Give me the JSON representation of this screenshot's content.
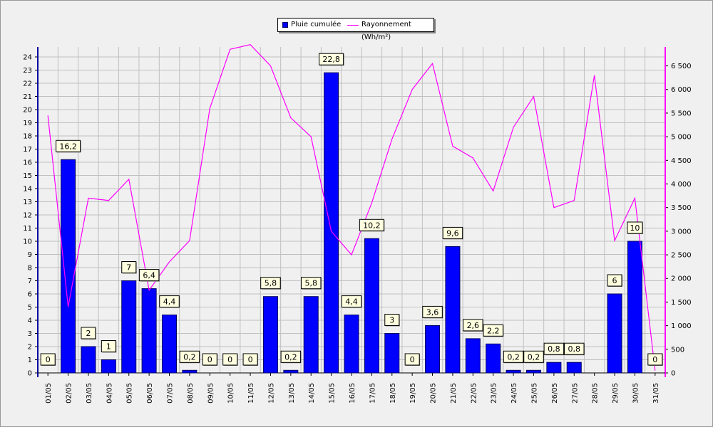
{
  "legend": {
    "bar_label": "Pluie cumulée",
    "line_label": "Rayonnement (Wh/m²)"
  },
  "colors": {
    "bar": "#0000ff",
    "line": "#ff00ff",
    "grid": "#c0c0c0",
    "label_bg": "#ffffe0"
  },
  "chart_data": {
    "type": "bar",
    "categories": [
      "01/05",
      "02/05",
      "03/05",
      "04/05",
      "05/05",
      "06/05",
      "07/05",
      "08/05",
      "09/05",
      "10/05",
      "11/05",
      "12/05",
      "13/05",
      "14/05",
      "15/05",
      "16/05",
      "17/05",
      "18/05",
      "19/05",
      "20/05",
      "21/05",
      "22/05",
      "23/05",
      "24/05",
      "25/05",
      "26/05",
      "27/05",
      "28/05",
      "29/05",
      "30/05",
      "31/05"
    ],
    "series": [
      {
        "name": "Pluie cumulée",
        "type": "bar",
        "axis": "left",
        "values": [
          0,
          16.2,
          2,
          1,
          7,
          6.4,
          4.4,
          0.2,
          0,
          0,
          0,
          5.8,
          0.2,
          5.8,
          22.8,
          4.4,
          10.2,
          3,
          0,
          3.6,
          9.6,
          2.6,
          2.2,
          0.2,
          0.2,
          0.8,
          0.8,
          null,
          6,
          10,
          0
        ],
        "data_labels": [
          "0",
          "16,2",
          "2",
          "1",
          "7",
          "6,4",
          "4,4",
          "0,2",
          "0",
          "0",
          "0",
          "5,8",
          "0,2",
          "5,8",
          "22,8",
          "4,4",
          "10,2",
          "3",
          "0",
          "3,6",
          "9,6",
          "2,6",
          "2,2",
          "0,2",
          "0,2",
          "0,8",
          "0,8",
          "",
          "6",
          "10",
          "0"
        ]
      },
      {
        "name": "Rayonnement (Wh/m²)",
        "type": "line",
        "axis": "right",
        "values": [
          5450,
          1400,
          3700,
          3650,
          4100,
          1750,
          2350,
          2800,
          5600,
          6850,
          6950,
          6500,
          5400,
          5000,
          3000,
          2500,
          3600,
          4950,
          6000,
          6550,
          4800,
          4550,
          3850,
          5200,
          5850,
          3500,
          3650,
          6300,
          2800,
          3700,
          50
        ]
      }
    ],
    "y_left": {
      "min": 0,
      "max": 24,
      "ticks": [
        "0",
        "1",
        "2",
        "3",
        "4",
        "5",
        "6",
        "7",
        "8",
        "9",
        "10",
        "11",
        "12",
        "13",
        "14",
        "15",
        "16",
        "17",
        "18",
        "19",
        "20",
        "21",
        "22",
        "23",
        "24"
      ]
    },
    "y_right": {
      "min": 0,
      "max": 6900,
      "ticks": [
        "0",
        "500",
        "1 000",
        "1 500",
        "2 000",
        "2 500",
        "3 000",
        "3 500",
        "4 000",
        "4 500",
        "5 000",
        "5 500",
        "6 000",
        "6 500"
      ]
    },
    "grid": true,
    "legend_position": "top-center"
  }
}
